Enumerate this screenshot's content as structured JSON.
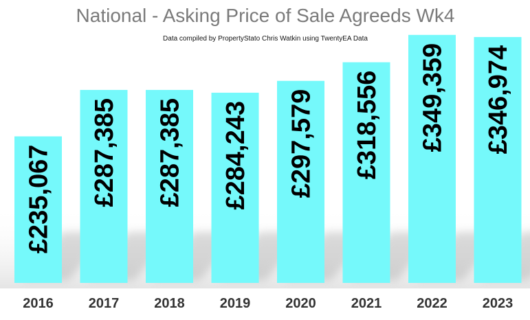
{
  "chart_data": {
    "type": "bar",
    "title": "National - Asking Price of Sale Agreeds  Wk4",
    "subtitle": "Data compiled by PropertyStato Chris Watkin using TwentyEA Data",
    "categories": [
      "2016",
      "2017",
      "2018",
      "2019",
      "2020",
      "2021",
      "2022",
      "2023"
    ],
    "values": [
      235067,
      287385,
      287385,
      284243,
      297579,
      318556,
      349359,
      346974
    ],
    "data_labels": [
      "£235,067",
      "£287,385",
      "£287,385",
      "£284,243",
      "£297,579",
      "£318,556",
      "£349,359",
      "£346,974"
    ],
    "bar_color": "#75f9fb",
    "ylim": [
      0,
      350000
    ],
    "grid": false,
    "legend": "none"
  }
}
